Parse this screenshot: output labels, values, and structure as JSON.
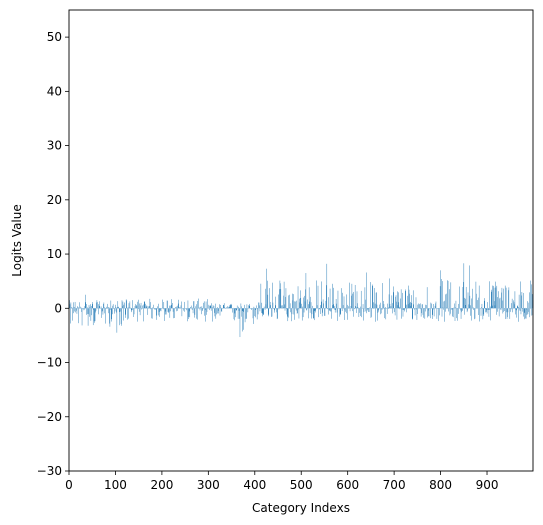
{
  "chart_data": {
    "type": "bar",
    "xlabel": "Category Indexs",
    "ylabel": "Logits Value",
    "xlim": [
      0,
      999
    ],
    "ylim": [
      -30,
      55
    ],
    "x_ticks": [
      0,
      100,
      200,
      300,
      400,
      500,
      600,
      700,
      800,
      900
    ],
    "y_ticks": [
      -30,
      -20,
      -10,
      0,
      10,
      20,
      30,
      40,
      50
    ],
    "y_tick_labels": [
      "−30",
      "−20",
      "−10",
      "0",
      "10",
      "20",
      "30",
      "40",
      "50"
    ],
    "bar_color": "#1f77b4",
    "grid": false,
    "n_categories": 1000,
    "profile_segments": [
      {
        "x_start": 0,
        "x_end": 120,
        "low": -3.5,
        "high": 1.5
      },
      {
        "x_start": 120,
        "x_end": 300,
        "low": -2.5,
        "high": 1.8
      },
      {
        "x_start": 300,
        "x_end": 360,
        "low": -3.0,
        "high": 1.0
      },
      {
        "x_start": 360,
        "x_end": 400,
        "low": -5.0,
        "high": 1.0
      },
      {
        "x_start": 400,
        "x_end": 600,
        "low": -2.5,
        "high": 5.5
      },
      {
        "x_start": 600,
        "x_end": 800,
        "low": -2.5,
        "high": 5.0
      },
      {
        "x_start": 800,
        "x_end": 999,
        "low": -2.5,
        "high": 5.5
      }
    ],
    "notable_values": [
      {
        "x": 35,
        "y": 2.5
      },
      {
        "x": 103,
        "y": -4.5
      },
      {
        "x": 368,
        "y": -5.3
      },
      {
        "x": 425,
        "y": 7.3
      },
      {
        "x": 510,
        "y": 6.5
      },
      {
        "x": 555,
        "y": 8.2
      },
      {
        "x": 640,
        "y": 6.6
      },
      {
        "x": 690,
        "y": 5.5
      },
      {
        "x": 800,
        "y": 7.0
      },
      {
        "x": 850,
        "y": 8.3
      },
      {
        "x": 862,
        "y": 7.9
      },
      {
        "x": 915,
        "y": 3.8
      },
      {
        "x": 975,
        "y": 3.0
      }
    ]
  }
}
